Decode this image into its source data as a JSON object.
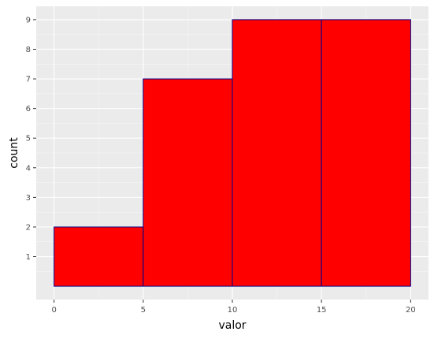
{
  "chart_data": {
    "type": "bar",
    "xlabel": "valor",
    "ylabel": "count",
    "xlim": [
      -1,
      21
    ],
    "ylim": [
      -0.45,
      9.45
    ],
    "x_ticks": [
      0,
      5,
      10,
      15,
      20
    ],
    "x_tick_labels": [
      "0",
      "5",
      "10",
      "15",
      "20"
    ],
    "y_ticks": [
      1,
      2,
      3,
      4,
      5,
      6,
      7,
      8,
      9
    ],
    "y_tick_labels": [
      "1",
      "2",
      "3",
      "4",
      "5",
      "6",
      "7",
      "8",
      "9"
    ],
    "bins": [
      {
        "start": 0,
        "end": 5,
        "count": 2
      },
      {
        "start": 5,
        "end": 10,
        "count": 7
      },
      {
        "start": 10,
        "end": 15,
        "count": 9
      },
      {
        "start": 15,
        "end": 20,
        "count": 9
      }
    ],
    "grid": true,
    "colors": {
      "bar_fill": "#ff0000",
      "bar_outline": "#00008b",
      "panel_background": "#ebebeb",
      "grid_major": "#ffffff",
      "grid_minor": "#f5f5f5"
    }
  }
}
